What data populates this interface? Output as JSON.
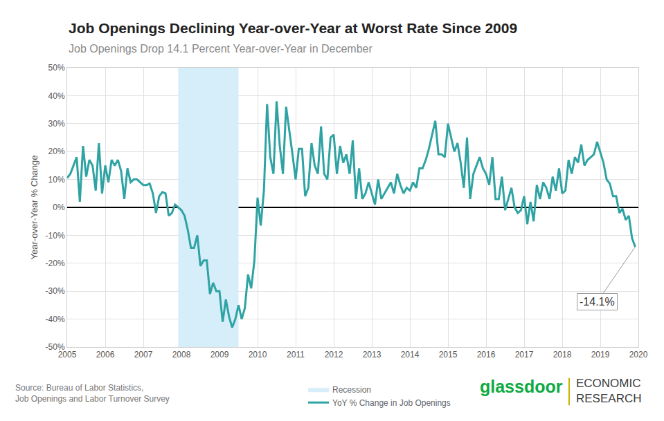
{
  "chart_data": {
    "type": "line",
    "title": "Job Openings Declining Year-over-Year at Worst Rate Since 2009",
    "subtitle": "Job Openings Drop 14.1 Percent Year-over-Year in December",
    "y_label": "Year-over-Year % Change",
    "source": [
      "Source: Bureau of Labor Statistics,",
      "Job Openings and Labor Turnover Survey"
    ],
    "logo": {
      "text": "glassdoor",
      "color": "#0caa41",
      "subtext": [
        "ECONOMIC",
        "RESEARCH"
      ]
    },
    "x": [
      2005,
      2005.083,
      2005.167,
      2005.25,
      2005.333,
      2005.417,
      2005.5,
      2005.583,
      2005.667,
      2005.75,
      2005.833,
      2005.917,
      2006,
      2006.083,
      2006.167,
      2006.25,
      2006.333,
      2006.417,
      2006.5,
      2006.583,
      2006.667,
      2006.75,
      2006.833,
      2006.917,
      2007,
      2007.083,
      2007.167,
      2007.25,
      2007.333,
      2007.417,
      2007.5,
      2007.583,
      2007.667,
      2007.75,
      2007.833,
      2007.917,
      2008,
      2008.083,
      2008.167,
      2008.25,
      2008.333,
      2008.417,
      2008.5,
      2008.583,
      2008.667,
      2008.75,
      2008.833,
      2008.917,
      2009,
      2009.083,
      2009.167,
      2009.25,
      2009.333,
      2009.417,
      2009.5,
      2009.583,
      2009.667,
      2009.75,
      2009.833,
      2009.917,
      2010,
      2010.083,
      2010.167,
      2010.25,
      2010.333,
      2010.417,
      2010.5,
      2010.583,
      2010.667,
      2010.75,
      2010.833,
      2010.917,
      2011,
      2011.083,
      2011.167,
      2011.25,
      2011.333,
      2011.417,
      2011.5,
      2011.583,
      2011.667,
      2011.75,
      2011.833,
      2011.917,
      2012,
      2012.083,
      2012.167,
      2012.25,
      2012.333,
      2012.417,
      2012.5,
      2012.583,
      2012.667,
      2012.75,
      2012.833,
      2012.917,
      2013,
      2013.083,
      2013.167,
      2013.25,
      2013.333,
      2013.417,
      2013.5,
      2013.583,
      2013.667,
      2013.75,
      2013.833,
      2013.917,
      2014,
      2014.083,
      2014.167,
      2014.25,
      2014.333,
      2014.417,
      2014.5,
      2014.583,
      2014.667,
      2014.75,
      2014.833,
      2014.917,
      2015,
      2015.083,
      2015.167,
      2015.25,
      2015.333,
      2015.417,
      2015.5,
      2015.583,
      2015.667,
      2015.75,
      2015.833,
      2015.917,
      2016,
      2016.083,
      2016.167,
      2016.25,
      2016.333,
      2016.417,
      2016.5,
      2016.583,
      2016.667,
      2016.75,
      2016.833,
      2016.917,
      2017,
      2017.083,
      2017.167,
      2017.25,
      2017.333,
      2017.417,
      2017.5,
      2017.583,
      2017.667,
      2017.75,
      2017.833,
      2017.917,
      2018,
      2018.083,
      2018.167,
      2018.25,
      2018.333,
      2018.417,
      2018.5,
      2018.583,
      2018.667,
      2018.75,
      2018.833,
      2018.917,
      2019,
      2019.083,
      2019.167,
      2019.25,
      2019.333,
      2019.417,
      2019.5,
      2019.583,
      2019.667,
      2019.75,
      2019.833,
      2019.917
    ],
    "series": [
      {
        "name": "YoY % Change in Job Openings",
        "color": "#2fa3a3",
        "values": [
          10.5,
          12,
          15,
          18,
          2,
          22,
          11,
          17,
          15,
          6,
          23,
          5,
          15,
          9,
          17,
          15,
          17,
          13,
          3,
          14,
          9,
          10,
          10,
          9,
          8,
          8,
          8.5,
          5,
          -2,
          4,
          5.5,
          5,
          -3,
          -2,
          1,
          0,
          -1,
          -3,
          -8,
          -14.5,
          -14.5,
          -10,
          -21,
          -19,
          -19,
          -31,
          -27,
          -30,
          -30,
          -41,
          -33,
          -39,
          -43,
          -40,
          -35,
          -40,
          -36,
          -24,
          -29,
          -19,
          3.5,
          -6.5,
          6,
          37,
          18,
          12,
          38,
          22,
          12,
          36,
          28,
          19,
          10,
          21,
          21,
          4,
          7,
          23,
          15,
          12,
          29,
          12,
          10,
          25,
          26,
          12,
          22,
          16,
          19,
          12,
          24,
          3,
          14,
          3,
          5,
          9,
          5,
          1,
          10,
          3,
          5,
          7,
          9,
          5,
          12,
          8,
          5,
          7,
          6,
          9,
          7,
          14,
          14,
          17,
          21,
          26,
          31,
          19,
          19,
          18,
          30,
          25,
          20,
          23,
          16,
          7,
          25,
          3,
          12,
          15,
          18,
          14,
          12,
          8,
          18,
          3,
          3,
          11,
          -1,
          3,
          7,
          0,
          -2,
          -1,
          4,
          -6,
          2,
          -5,
          8,
          3,
          9,
          7,
          3,
          11,
          6,
          14,
          5,
          6,
          17,
          12,
          18,
          16,
          22.5,
          15,
          17,
          18,
          19,
          23.5,
          20,
          16,
          10,
          8.5,
          4,
          4,
          -2,
          -0.5,
          -4.5,
          -3,
          -11,
          -14.1
        ]
      }
    ],
    "shaded_regions": [
      {
        "name": "Recession",
        "x0": 2007.917,
        "x1": 2009.5,
        "color": "#d6eefa"
      }
    ],
    "annotations": [
      {
        "x": 2019.917,
        "y": -14.1,
        "text": "-14.1%"
      }
    ],
    "xlim": [
      2005,
      2020
    ],
    "xticks": [
      2005,
      2006,
      2007,
      2008,
      2009,
      2010,
      2011,
      2012,
      2013,
      2014,
      2015,
      2016,
      2017,
      2018,
      2019,
      2020
    ],
    "ylim": [
      -50,
      50
    ],
    "yticks": [
      {
        "value": -50,
        "label": "-50%"
      },
      {
        "value": -40,
        "label": "-40%"
      },
      {
        "value": -30,
        "label": "-30%"
      },
      {
        "value": -20,
        "label": "-20%"
      },
      {
        "value": -10,
        "label": "-10%"
      },
      {
        "value": 0,
        "label": "0%"
      },
      {
        "value": 10,
        "label": "10%"
      },
      {
        "value": 20,
        "label": "20%"
      },
      {
        "value": 30,
        "label": "30%"
      },
      {
        "value": 40,
        "label": "40%"
      },
      {
        "value": 50,
        "label": "50%"
      }
    ],
    "grid": true,
    "legend": "bottom"
  }
}
